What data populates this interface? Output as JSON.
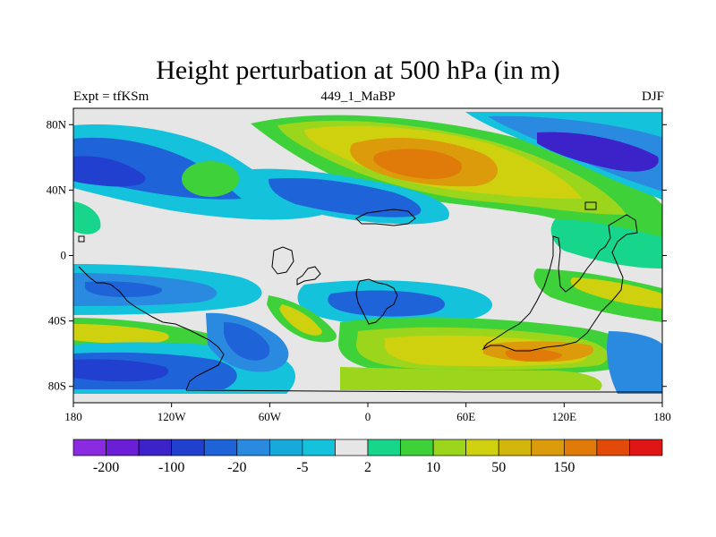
{
  "title": "Height perturbation at 500 hPa (in m)",
  "experiment": "Expt = tfKSm",
  "run_id": "449_1_MaBP",
  "season": "DJF",
  "lat_labels": [
    "80N",
    "40N",
    "0",
    "40S",
    "80S"
  ],
  "lon_labels": [
    "180",
    "120W",
    "60W",
    "0",
    "60E",
    "120E",
    "180"
  ],
  "colorbar": {
    "colors": [
      "#8a2be2",
      "#6a1fd6",
      "#3b22c9",
      "#2140d0",
      "#1f63d8",
      "#2a8ae0",
      "#16aadc",
      "#14c2dc",
      "#e6e6e6",
      "#17d58a",
      "#3fd13a",
      "#9bd61c",
      "#cfd10e",
      "#d2b60c",
      "#dc9b0a",
      "#e07a08",
      "#e24a0a",
      "#e01515"
    ],
    "labels": [
      "-200",
      "-100",
      "-20",
      "-5",
      "2",
      "10",
      "50",
      "150"
    ]
  },
  "palette": {
    "neutral": "#e6e6e6",
    "border": "#000000"
  }
}
